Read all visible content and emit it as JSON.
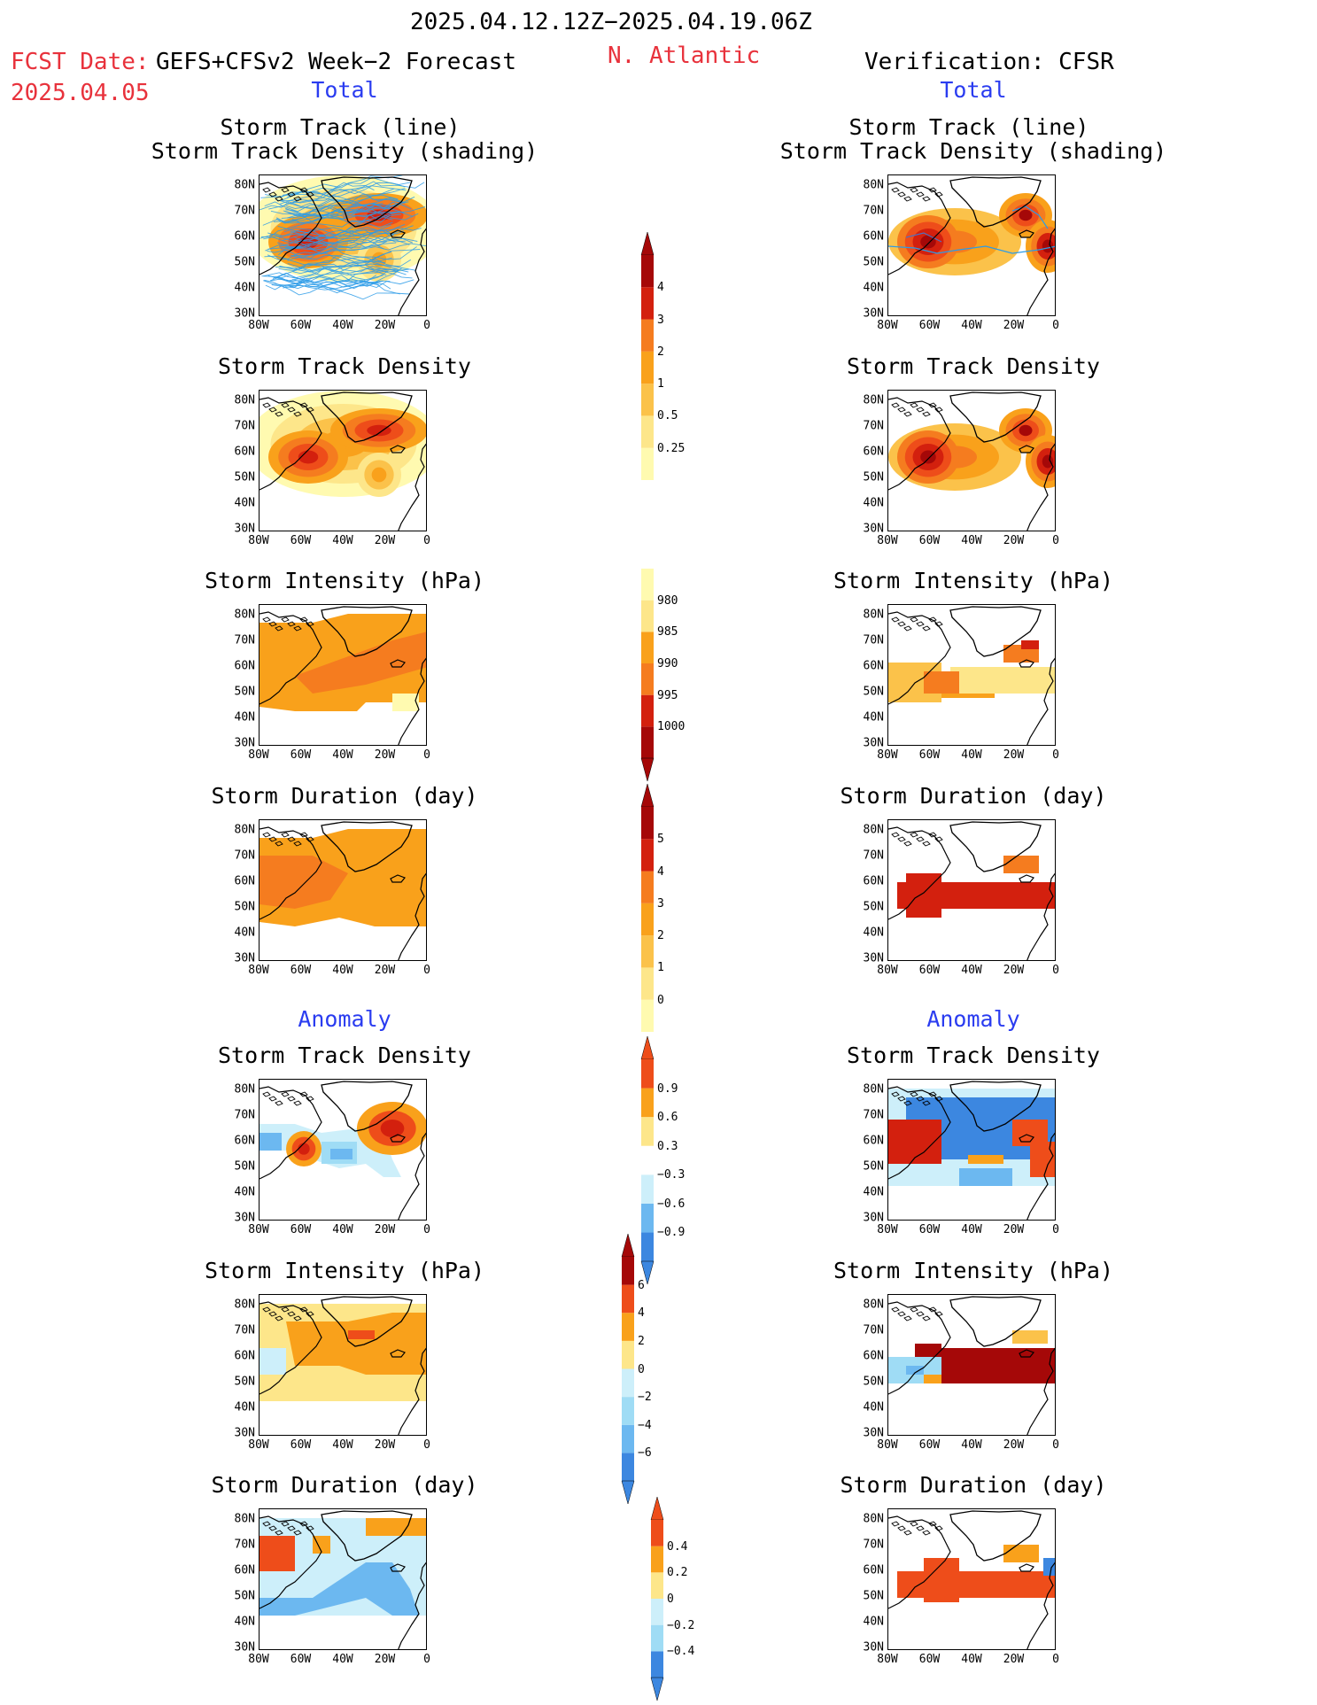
{
  "header": {
    "period": "2025.04.12.12Z−2025.04.19.06Z",
    "fcst_date_label": "FCST Date:",
    "fcst_model": "GEFS+CFSv2 Week−2 Forecast",
    "fcst_date": "2025.04.05",
    "region": "N. Atlantic",
    "verification": "Verification: CFSR"
  },
  "sections": {
    "total_label": "Total",
    "anomaly_label": "Anomaly"
  },
  "panel_titles": {
    "track_line": "Storm Track (line)",
    "track_shading": "Storm Track Density (shading)",
    "density": "Storm Track Density",
    "intensity": "Storm Intensity (hPa)",
    "duration": "Storm Duration (day)"
  },
  "axes": {
    "lat_ticks": [
      "80N",
      "70N",
      "60N",
      "50N",
      "40N",
      "30N"
    ],
    "lon_ticks": [
      "80W",
      "60W",
      "40W",
      "20W",
      "0"
    ]
  },
  "colorbars": {
    "density_total": [
      "0.25",
      "0.5",
      "1",
      "2",
      "3",
      "4"
    ],
    "intensity_total": [
      "980",
      "985",
      "990",
      "995",
      "1000"
    ],
    "duration_total": [
      "0",
      "1",
      "2",
      "3",
      "4",
      "5"
    ],
    "density_anom": [
      "−0.9",
      "−0.6",
      "−0.3",
      "0.3",
      "0.6",
      "0.9"
    ],
    "intensity_anom": [
      "−6",
      "−4",
      "−2",
      "0",
      "2",
      "4",
      "6"
    ],
    "duration_anom": [
      "−0.4",
      "−0.2",
      "0",
      "0.2",
      "0.4"
    ]
  },
  "colors": {
    "title_red": "#e8323c",
    "section_blue": "#2a3cf0",
    "warm": [
      "#fffab0",
      "#fde68a",
      "#fbc24a",
      "#f9a11b",
      "#f57c1f",
      "#ee4d1a",
      "#d3200e",
      "#a50808"
    ],
    "cool": [
      "#cdeffa",
      "#9fdcf5",
      "#6cb8f0",
      "#3c87e0",
      "#1f5fd0"
    ],
    "track_line": "#2b9be8"
  }
}
